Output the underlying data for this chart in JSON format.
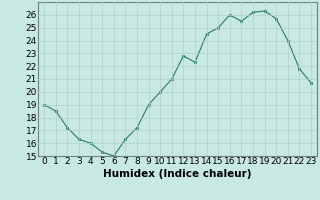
{
  "x": [
    0,
    1,
    2,
    3,
    4,
    5,
    6,
    7,
    8,
    9,
    10,
    11,
    12,
    13,
    14,
    15,
    16,
    17,
    18,
    19,
    20,
    21,
    22,
    23
  ],
  "y": [
    19,
    18.5,
    17.2,
    16.3,
    16.0,
    15.3,
    15.0,
    16.3,
    17.2,
    19.0,
    20.0,
    21.0,
    22.8,
    22.3,
    24.5,
    25.0,
    26.0,
    25.5,
    26.2,
    26.3,
    25.7,
    24.0,
    21.8,
    20.7
  ],
  "line_color": "#2d7a6a",
  "marker_color": "#2d7a6a",
  "bg_color": "#c8e8e2",
  "grid_color": "#b0d0ca",
  "xlabel": "Humidex (Indice chaleur)",
  "ylim": [
    15,
    27
  ],
  "xlim": [
    -0.5,
    23.5
  ],
  "yticks": [
    15,
    16,
    17,
    18,
    19,
    20,
    21,
    22,
    23,
    24,
    25,
    26
  ],
  "xticks": [
    0,
    1,
    2,
    3,
    4,
    5,
    6,
    7,
    8,
    9,
    10,
    11,
    12,
    13,
    14,
    15,
    16,
    17,
    18,
    19,
    20,
    21,
    22,
    23
  ],
  "xlabel_fontsize": 7.5,
  "tick_fontsize": 6.5
}
